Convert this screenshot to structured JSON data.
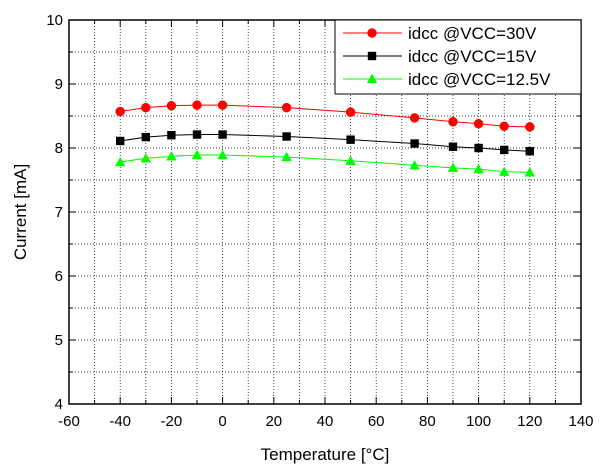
{
  "chart_data": {
    "type": "line",
    "xlabel": "Temperature [°C]",
    "ylabel": "Current [mA]",
    "xlim": [
      -60,
      140
    ],
    "ylim": [
      4,
      10
    ],
    "xticks": [
      -60,
      -40,
      -20,
      0,
      20,
      40,
      60,
      80,
      100,
      120,
      140
    ],
    "yticks": [
      4,
      5,
      6,
      7,
      8,
      9,
      10
    ],
    "grid": true,
    "legend_position": "top-right",
    "x": [
      -40,
      -30,
      -20,
      -10,
      0,
      25,
      50,
      75,
      90,
      100,
      110,
      120
    ],
    "series": [
      {
        "name": "idcc @VCC=30V",
        "color": "#ff0000",
        "marker": "circle",
        "values": [
          8.57,
          8.63,
          8.66,
          8.67,
          8.67,
          8.63,
          8.56,
          8.47,
          8.41,
          8.38,
          8.34,
          8.33
        ]
      },
      {
        "name": "idcc @VCC=15V",
        "color": "#000000",
        "marker": "square",
        "values": [
          8.11,
          8.17,
          8.2,
          8.21,
          8.21,
          8.18,
          8.13,
          8.07,
          8.02,
          8.0,
          7.97,
          7.95
        ]
      },
      {
        "name": "idcc @VCC=12.5V",
        "color": "#00ff00",
        "marker": "triangle",
        "values": [
          7.78,
          7.84,
          7.87,
          7.89,
          7.89,
          7.86,
          7.8,
          7.73,
          7.69,
          7.67,
          7.63,
          7.62
        ]
      }
    ]
  }
}
